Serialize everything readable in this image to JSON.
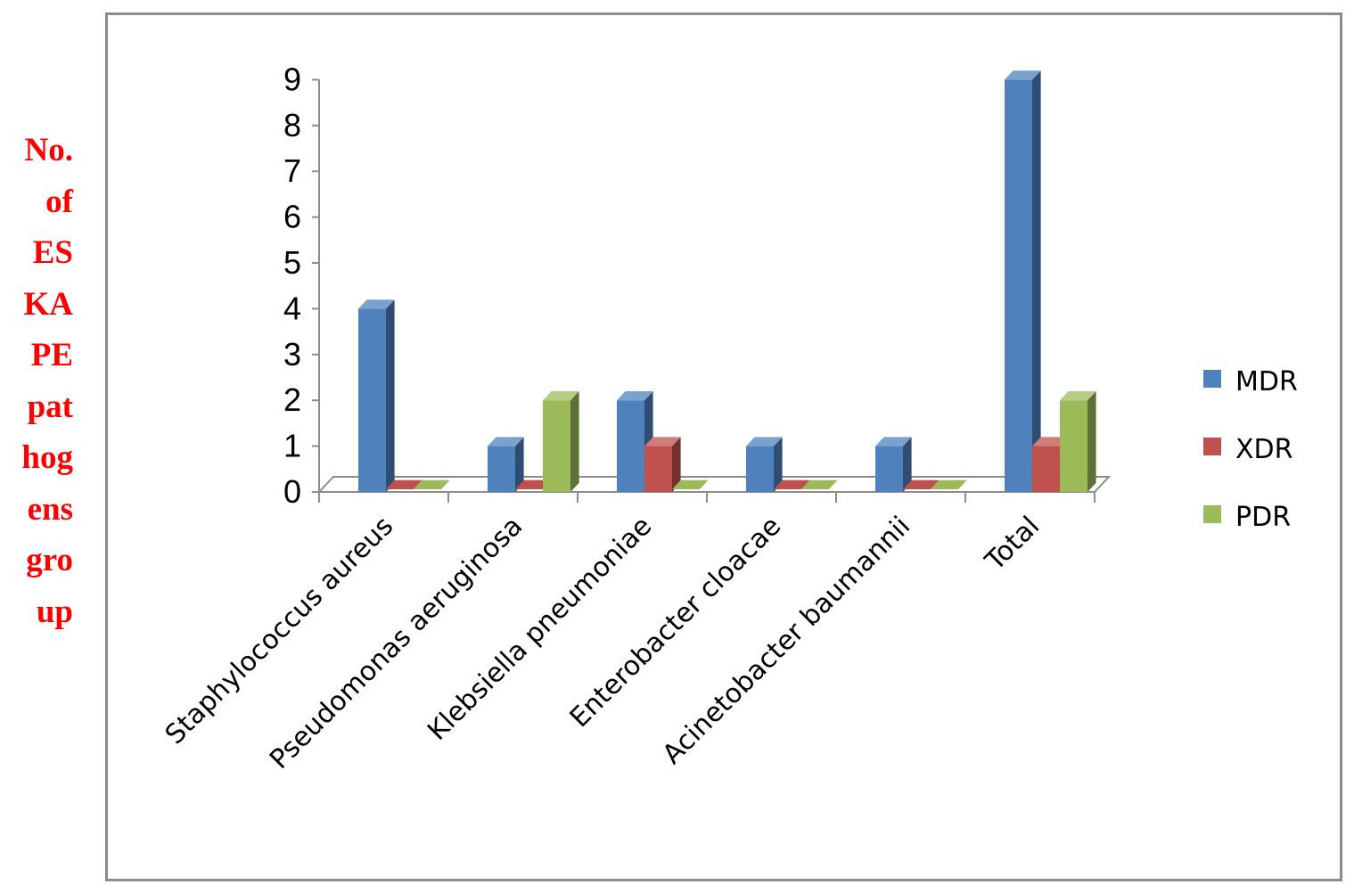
{
  "y_axis_label_lines": [
    "No.",
    "of",
    "ES",
    "KA",
    "PE",
    "pat",
    "hog",
    "ens",
    "gro",
    "up"
  ],
  "chart_data": {
    "type": "bar",
    "categories": [
      "Staphylococcus aureus",
      "Pseudomonas aeruginosa",
      "Klebsiella pneumoniae",
      "Enterobacter cloacae",
      "Acinetobacter baumannii",
      "Total"
    ],
    "series": [
      {
        "name": "MDR",
        "values": [
          4,
          1,
          2,
          1,
          1,
          9
        ],
        "color": "#4F81BD"
      },
      {
        "name": "XDR",
        "values": [
          0,
          0,
          1,
          0,
          0,
          1
        ],
        "color": "#C0504D"
      },
      {
        "name": "PDR",
        "values": [
          0,
          2,
          0,
          0,
          0,
          2
        ],
        "color": "#9BBB59"
      }
    ],
    "ylim": [
      0,
      9
    ],
    "yticks": [
      0,
      1,
      2,
      3,
      4,
      5,
      6,
      7,
      8,
      9
    ],
    "legend_position": "right",
    "grid": false
  }
}
